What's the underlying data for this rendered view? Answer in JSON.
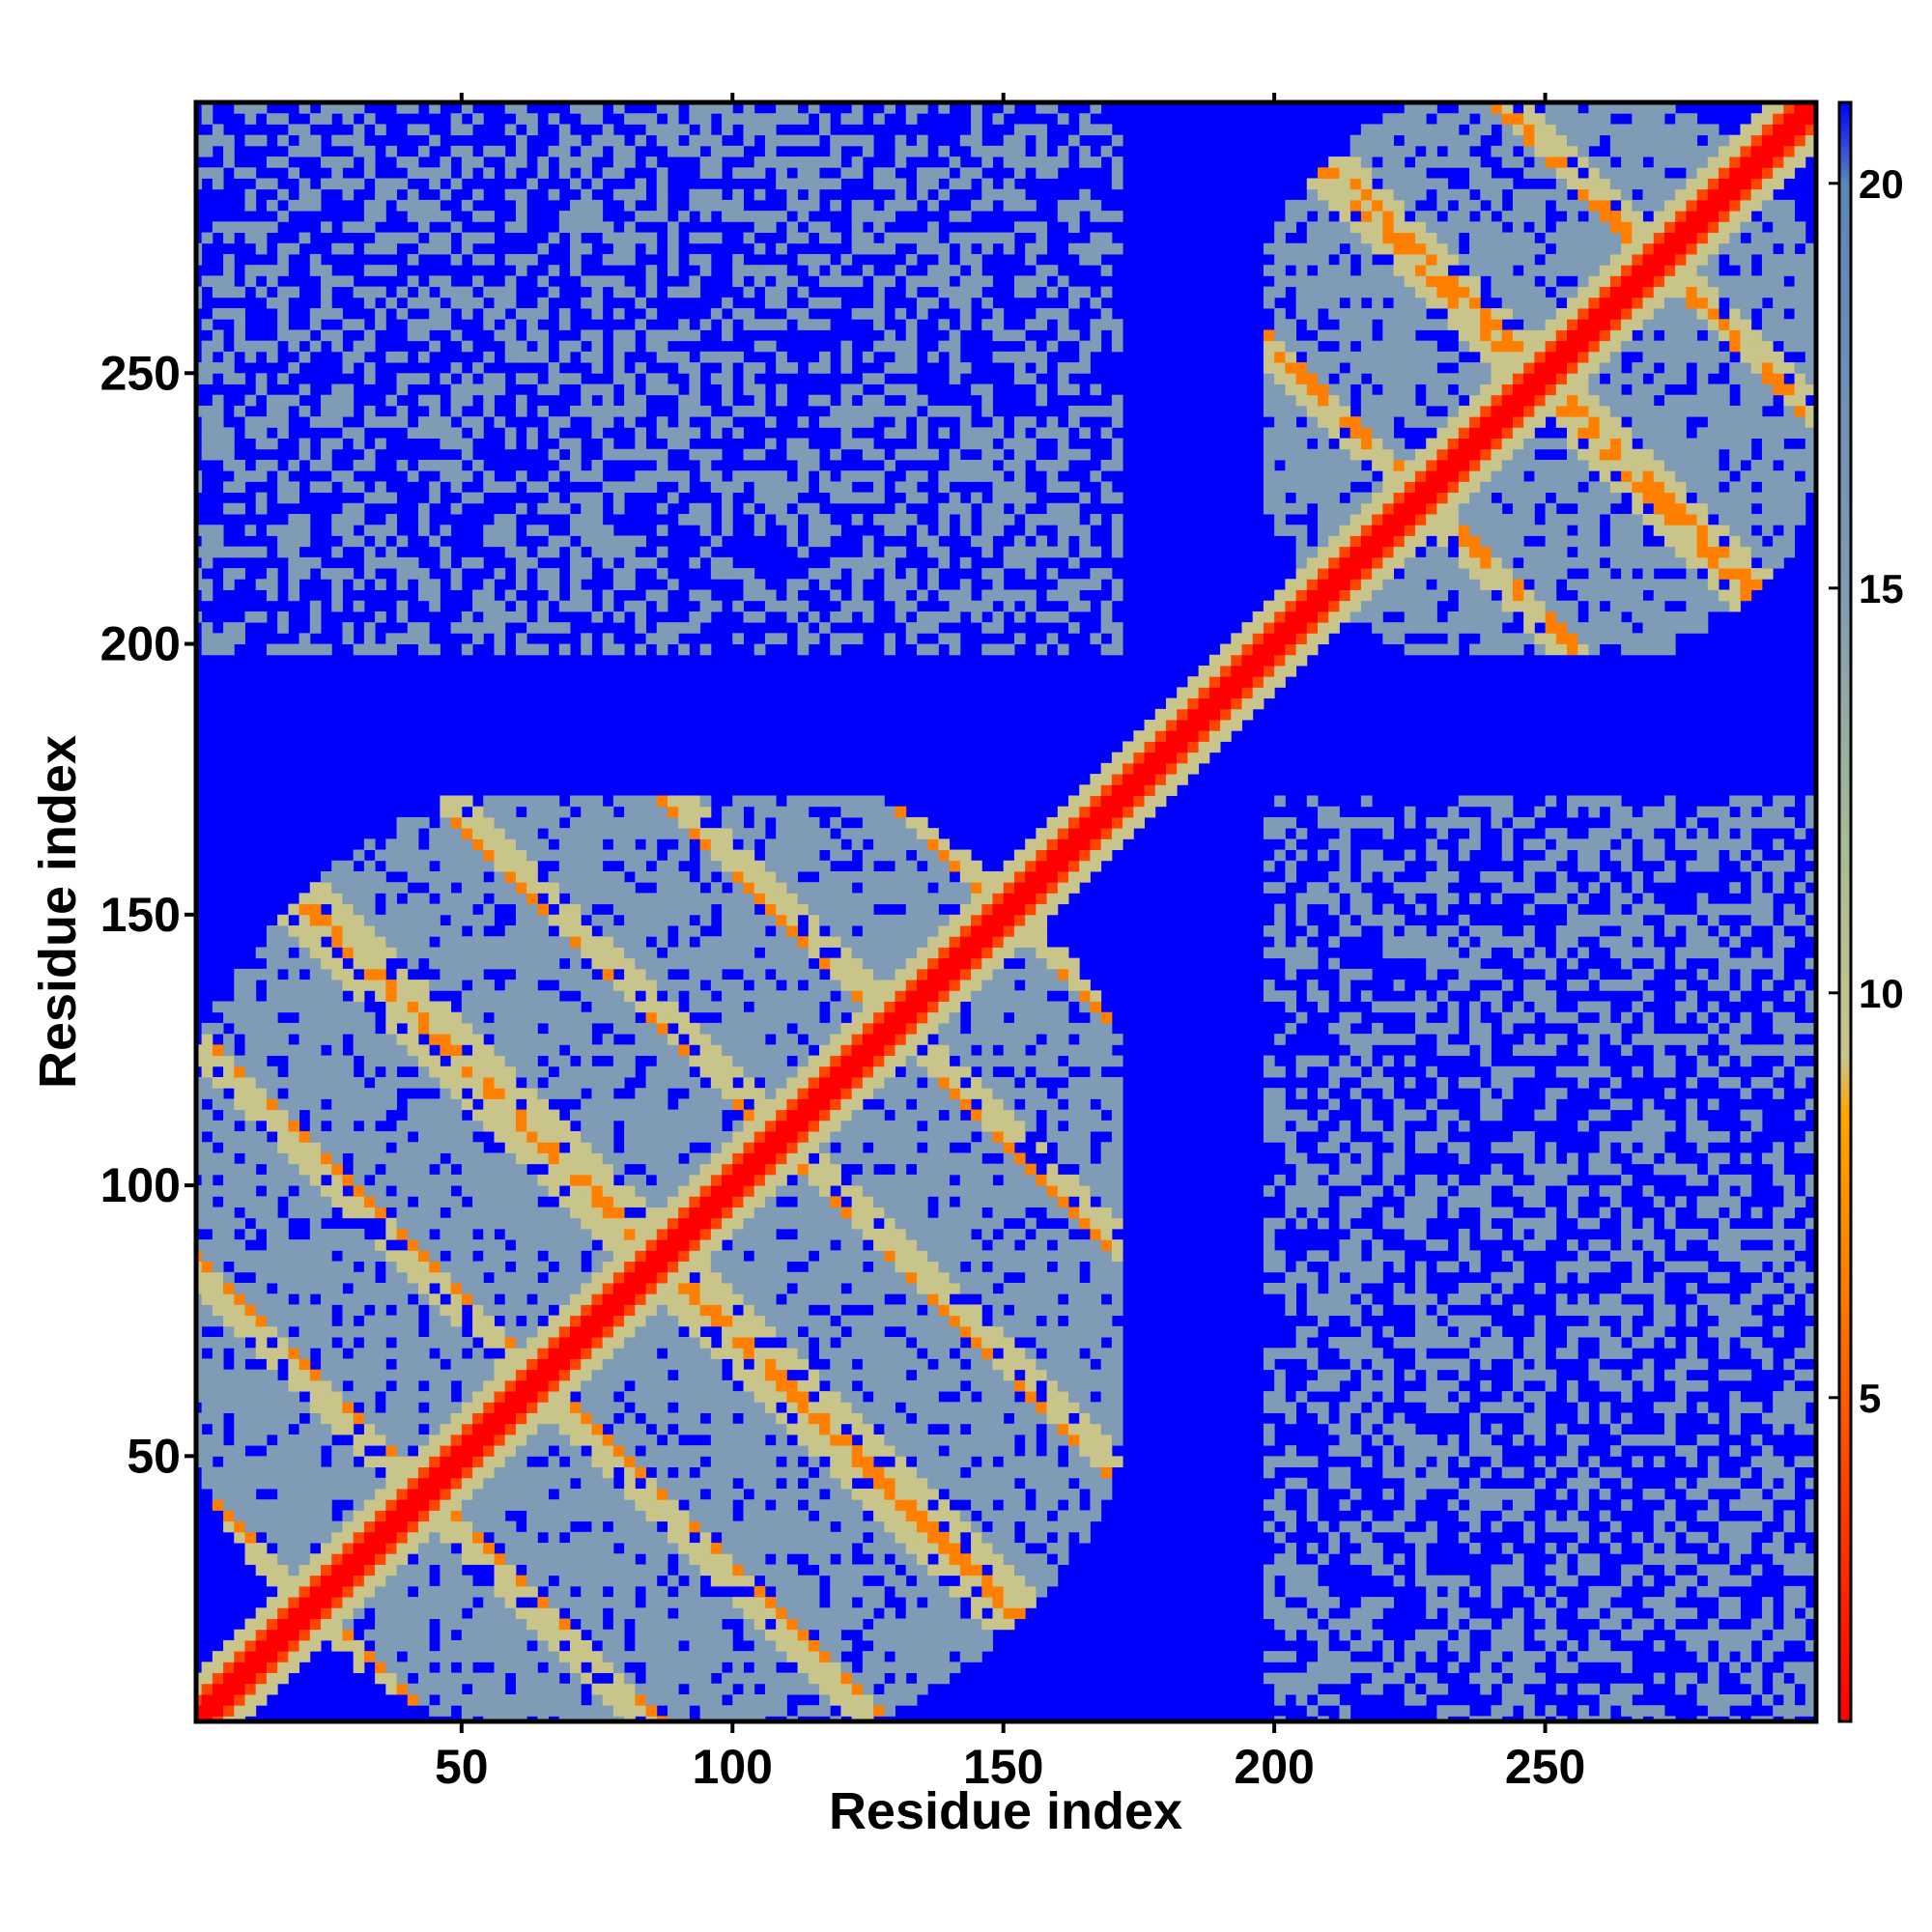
{
  "chart_data": {
    "type": "heatmap",
    "title": "",
    "xlabel": "Residue index",
    "ylabel": "Residue index",
    "xlim": [
      1,
      300
    ],
    "ylim": [
      1,
      300
    ],
    "x_ticks": [
      50,
      100,
      150,
      200,
      250
    ],
    "y_ticks": [
      50,
      100,
      150,
      200,
      250
    ],
    "value_range": [
      1,
      21
    ],
    "colorbar": {
      "ticks": [
        5,
        10,
        15,
        20
      ],
      "colors": [
        {
          "value": 1,
          "color": "#ff0000"
        },
        {
          "value": 4,
          "color": "#ff4500"
        },
        {
          "value": 6.5,
          "color": "#ff7f00"
        },
        {
          "value": 8.5,
          "color": "#ffa500"
        },
        {
          "value": 9.2,
          "color": "#c9c58a"
        },
        {
          "value": 12,
          "color": "#a5ba95"
        },
        {
          "value": 15,
          "color": "#7f9bb5"
        },
        {
          "value": 20,
          "color": "#5b86b8"
        },
        {
          "value": 21,
          "color": "#0000ff"
        }
      ]
    },
    "background_color": "#0000ff",
    "domains": [
      {
        "name": "",
        "start": 1,
        "end": 172
      },
      {
        "name": "",
        "start": 198,
        "end": 300
      }
    ],
    "grid": false,
    "legend": "colorbar-right"
  }
}
